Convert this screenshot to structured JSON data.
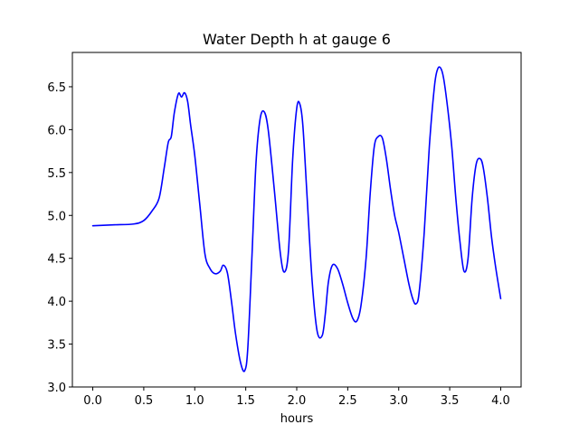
{
  "chart_data": {
    "type": "line",
    "title": "Water Depth h at gauge 6",
    "xlabel": "hours",
    "ylabel": "",
    "xlim": [
      -0.2,
      4.2
    ],
    "ylim": [
      3.0,
      6.9
    ],
    "xticks": [
      0.0,
      0.5,
      1.0,
      1.5,
      2.0,
      2.5,
      3.0,
      3.5,
      4.0
    ],
    "xtick_labels": [
      "0.0",
      "0.5",
      "1.0",
      "1.5",
      "2.0",
      "2.5",
      "3.0",
      "3.5",
      "4.0"
    ],
    "yticks": [
      3.0,
      3.5,
      4.0,
      4.5,
      5.0,
      5.5,
      6.0,
      6.5
    ],
    "ytick_labels": [
      "3.0",
      "3.5",
      "4.0",
      "4.5",
      "5.0",
      "5.5",
      "6.0",
      "6.5"
    ],
    "grid": false,
    "series": [
      {
        "color": "#0000ff",
        "x": [
          0.0,
          0.2,
          0.4,
          0.5,
          0.58,
          0.65,
          0.7,
          0.74,
          0.77,
          0.8,
          0.84,
          0.87,
          0.9,
          0.93,
          0.96,
          1.0,
          1.05,
          1.1,
          1.15,
          1.2,
          1.25,
          1.28,
          1.32,
          1.36,
          1.4,
          1.45,
          1.49,
          1.52,
          1.56,
          1.6,
          1.64,
          1.68,
          1.72,
          1.78,
          1.84,
          1.88,
          1.92,
          1.96,
          2.0,
          2.03,
          2.06,
          2.1,
          2.15,
          2.2,
          2.25,
          2.28,
          2.31,
          2.35,
          2.4,
          2.45,
          2.5,
          2.55,
          2.59,
          2.63,
          2.68,
          2.72,
          2.76,
          2.8,
          2.84,
          2.88,
          2.92,
          2.96,
          3.0,
          3.05,
          3.1,
          3.14,
          3.17,
          3.2,
          3.25,
          3.3,
          3.35,
          3.38,
          3.41,
          3.44,
          3.48,
          3.52,
          3.56,
          3.6,
          3.64,
          3.68,
          3.72,
          3.76,
          3.8,
          3.83,
          3.87,
          3.91,
          3.95,
          4.0
        ],
        "y": [
          4.88,
          4.89,
          4.9,
          4.94,
          5.05,
          5.2,
          5.55,
          5.85,
          5.92,
          6.2,
          6.42,
          6.38,
          6.43,
          6.33,
          6.05,
          5.7,
          5.12,
          4.55,
          4.38,
          4.32,
          4.35,
          4.42,
          4.33,
          4.0,
          3.62,
          3.28,
          3.19,
          3.45,
          4.5,
          5.6,
          6.12,
          6.21,
          6.0,
          5.3,
          4.55,
          4.34,
          4.6,
          5.65,
          6.25,
          6.3,
          6.05,
          5.25,
          4.25,
          3.65,
          3.6,
          3.85,
          4.22,
          4.42,
          4.38,
          4.2,
          3.98,
          3.8,
          3.77,
          3.95,
          4.5,
          5.25,
          5.8,
          5.92,
          5.9,
          5.65,
          5.3,
          5.0,
          4.8,
          4.5,
          4.2,
          4.02,
          3.97,
          4.1,
          4.8,
          5.8,
          6.5,
          6.7,
          6.72,
          6.6,
          6.25,
          5.8,
          5.2,
          4.7,
          4.35,
          4.5,
          5.2,
          5.6,
          5.66,
          5.55,
          5.2,
          4.75,
          4.4,
          4.03
        ]
      }
    ]
  }
}
